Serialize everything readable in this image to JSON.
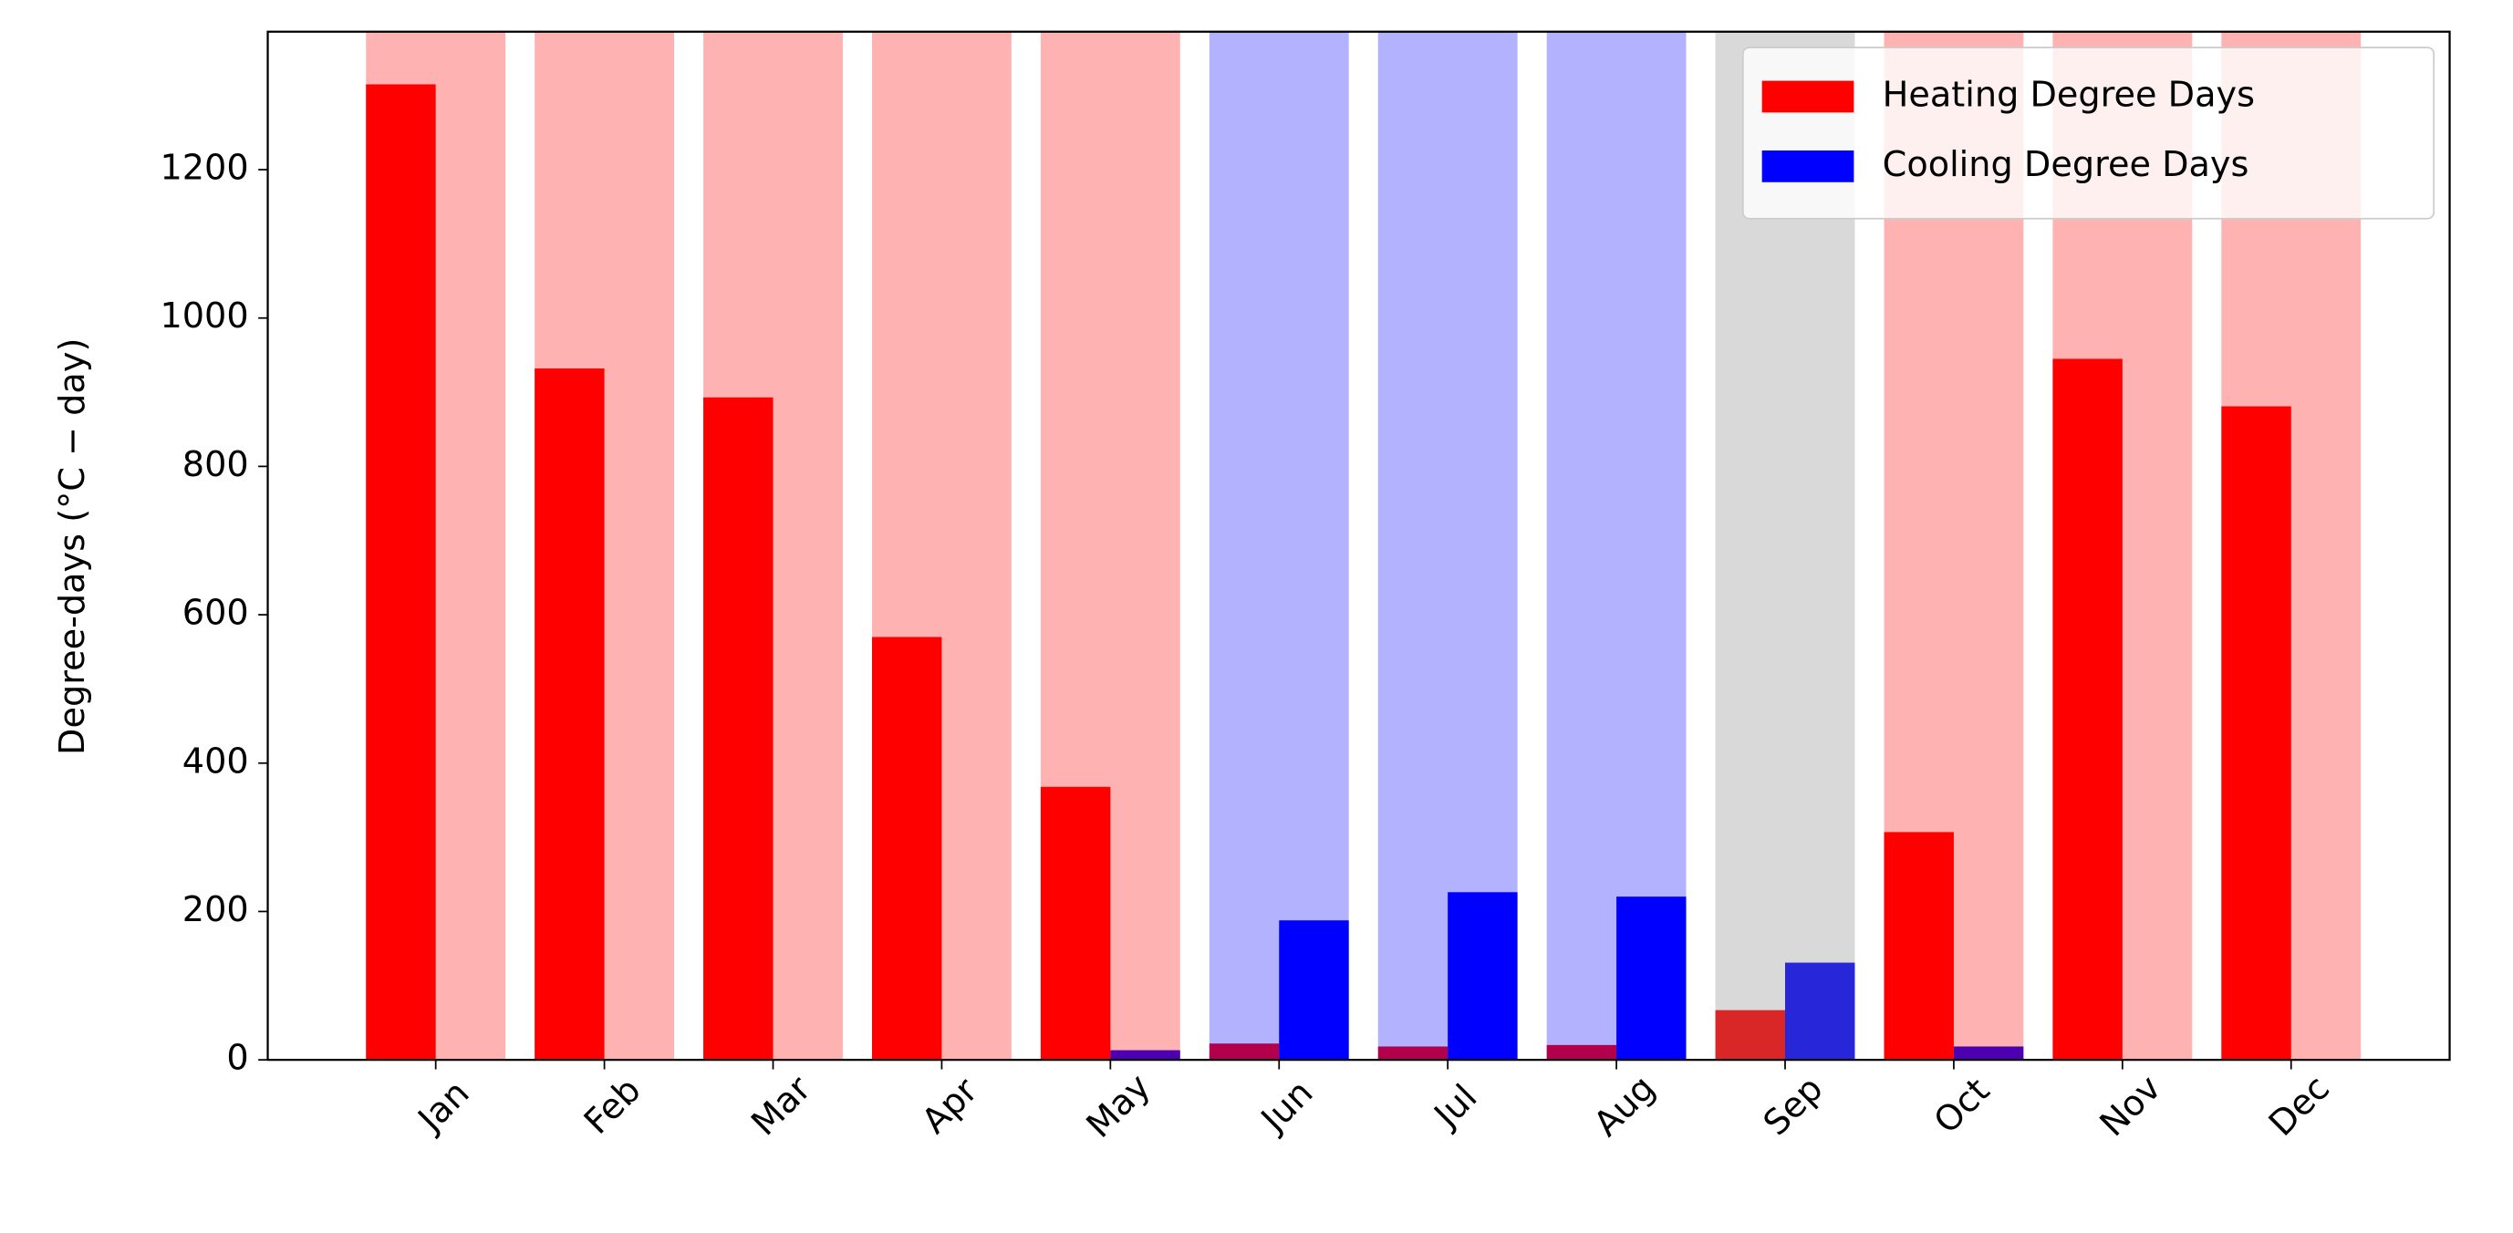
{
  "chart_data": {
    "type": "bar",
    "categories": [
      "Jan",
      "Feb",
      "Mar",
      "Apr",
      "May",
      "Jun",
      "Jul",
      "Aug",
      "Sep",
      "Oct",
      "Nov",
      "Dec"
    ],
    "series": [
      {
        "name": "Heating Degree Days",
        "color": "#ff0000",
        "values": [
          1315,
          932,
          893,
          570,
          368,
          22,
          18,
          20,
          67,
          307,
          945,
          881
        ]
      },
      {
        "name": "Cooling Degree Days",
        "color": "#0000ff",
        "values": [
          0,
          0,
          0,
          0,
          13,
          188,
          226,
          220,
          131,
          18,
          0,
          0
        ]
      }
    ],
    "season_colors": [
      "#ff0000",
      "#ff0000",
      "#ff0000",
      "#ff0000",
      "#ff0000",
      "#0000ff",
      "#0000ff",
      "#0000ff",
      "#808080",
      "#ff0000",
      "#ff0000",
      "#ff0000"
    ],
    "y_label": "Degree-days (°C − day)",
    "ylim": [
      0,
      1386
    ],
    "yticks": [
      0,
      200,
      400,
      600,
      800,
      1000,
      1200
    ],
    "legend": "upper right"
  }
}
